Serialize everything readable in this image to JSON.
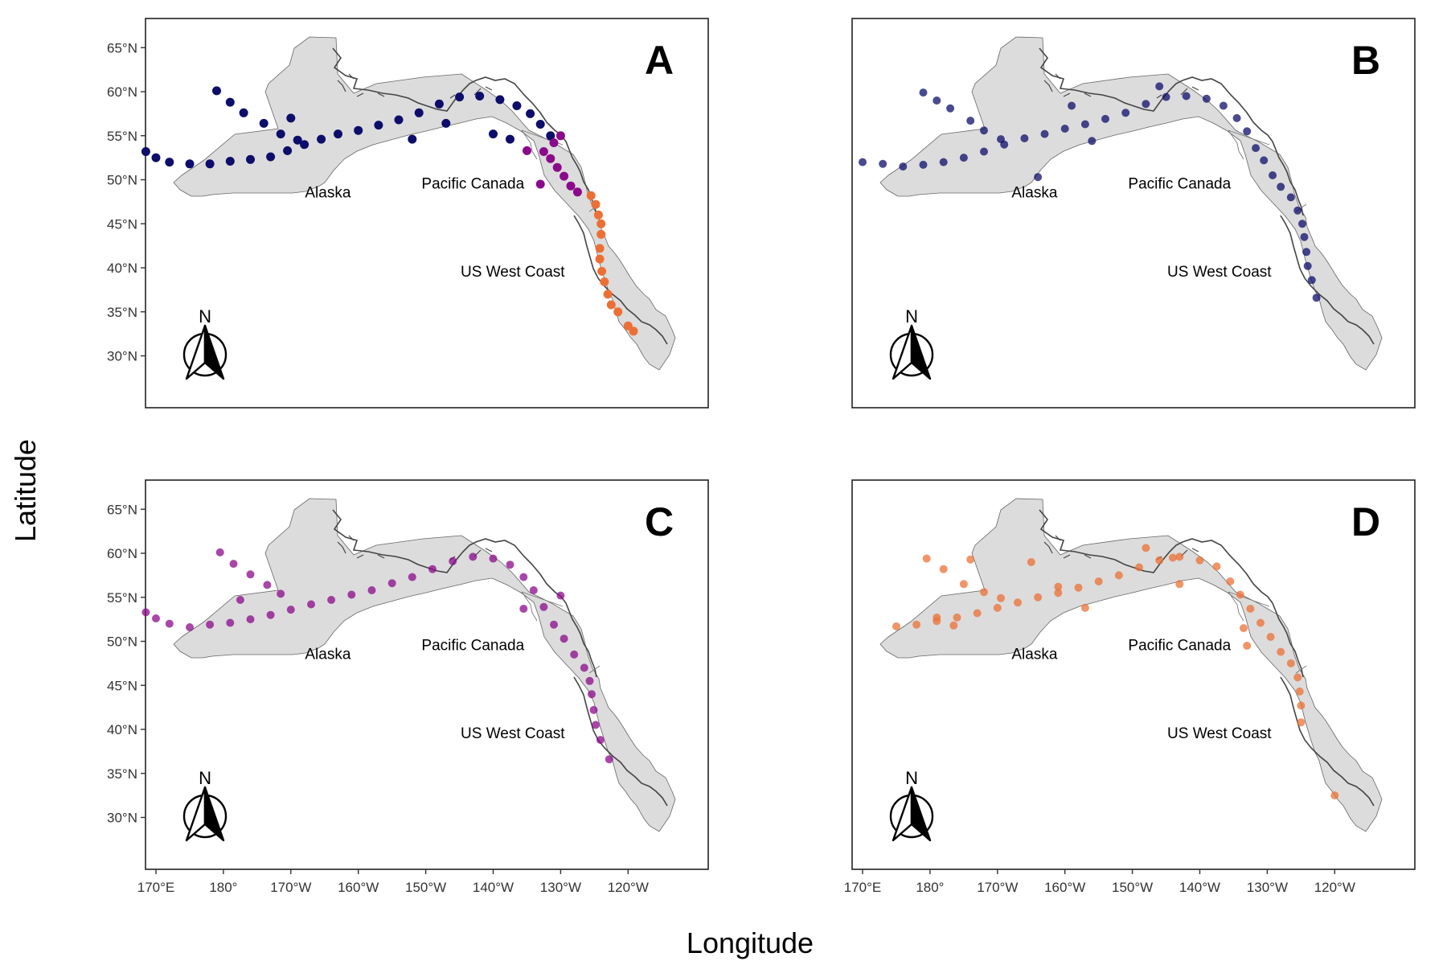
{
  "figure": {
    "x_axis_title": "Longitude",
    "y_axis_title": "Latitude",
    "north_arrow_label": "N"
  },
  "axes": {
    "x_ticks": [
      {
        "lon": 170,
        "label": "170°E"
      },
      {
        "lon": 180,
        "label": "180°"
      },
      {
        "lon": 190,
        "label": "170°W"
      },
      {
        "lon": 200,
        "label": "160°W"
      },
      {
        "lon": 210,
        "label": "150°W"
      },
      {
        "lon": 220,
        "label": "140°W"
      },
      {
        "lon": 230,
        "label": "130°W"
      },
      {
        "lon": 240,
        "label": "120°W"
      }
    ],
    "y_ticks": [
      {
        "lat": 65,
        "label": "65°N"
      },
      {
        "lat": 60,
        "label": "60°N"
      },
      {
        "lat": 55,
        "label": "55°N"
      },
      {
        "lat": 50,
        "label": "50°N"
      },
      {
        "lat": 45,
        "label": "45°N"
      },
      {
        "lat": 40,
        "label": "40°N"
      },
      {
        "lat": 35,
        "label": "35°N"
      },
      {
        "lat": 30,
        "label": "30°N"
      }
    ],
    "xlim": [
      164,
      247
    ],
    "ylim": [
      29,
      67
    ]
  },
  "regions": [
    {
      "name": "Alaska",
      "lon": 195.5,
      "lat": 48
    },
    {
      "name": "Pacific Canada",
      "lon": 217,
      "lat": 49
    },
    {
      "name": "US West Coast",
      "lon": 222.9,
      "lat": 39
    }
  ],
  "colors": {
    "land_fill": "#dcdcdc",
    "coast": "#444444",
    "region_alaska": "#0d0d6b",
    "region_canada": "#8b0a8b",
    "region_uswc": "#ec7035"
  },
  "panels": [
    {
      "label": "A"
    },
    {
      "label": "B"
    },
    {
      "label": "C"
    },
    {
      "label": "D"
    }
  ],
  "chart_data": {
    "type": "scatter",
    "x": "longitude (°E, 0–360)",
    "y": "latitude (°N)",
    "panels": [
      {
        "label": "A",
        "series": [
          {
            "color": "#0d0d6b",
            "points": [
              [
                168.5,
                53.2
              ],
              [
                170,
                52.5
              ],
              [
                172,
                52
              ],
              [
                175,
                51.8
              ],
              [
                178,
                51.8
              ],
              [
                181,
                52.1
              ],
              [
                184,
                52.3
              ],
              [
                187,
                52.6
              ],
              [
                189.5,
                53.3
              ],
              [
                192,
                54
              ],
              [
                194.5,
                54.6
              ],
              [
                197,
                55.2
              ],
              [
                200,
                55.6
              ],
              [
                203,
                56.2
              ],
              [
                206,
                56.8
              ],
              [
                209,
                57.6
              ],
              [
                212,
                58.6
              ],
              [
                215,
                59.4
              ],
              [
                218,
                59.5
              ],
              [
                221,
                59.1
              ],
              [
                223.5,
                58.4
              ],
              [
                225.5,
                57.5
              ],
              [
                227,
                56.3
              ],
              [
                228.5,
                55
              ],
              [
                179,
                60.1
              ],
              [
                181,
                58.8
              ],
              [
                183,
                57.6
              ],
              [
                186,
                56.4
              ],
              [
                188.5,
                55.2
              ],
              [
                191,
                54.5
              ],
              [
                190,
                57
              ],
              [
                208,
                54.6
              ],
              [
                213,
                56.4
              ],
              [
                220,
                55.2
              ],
              [
                222.5,
                54.6
              ]
            ]
          },
          {
            "color": "#8b0a8b",
            "points": [
              [
                227.5,
                53.2
              ],
              [
                228.5,
                52.4
              ],
              [
                229.5,
                51.4
              ],
              [
                230.5,
                50.4
              ],
              [
                231.5,
                49.3
              ],
              [
                232.5,
                48.6
              ],
              [
                229,
                54.2
              ],
              [
                230,
                55
              ],
              [
                225,
                53.3
              ],
              [
                227,
                49.5
              ]
            ]
          },
          {
            "color": "#ec7035",
            "points": [
              [
                234.5,
                48.2
              ],
              [
                235.2,
                47.2
              ],
              [
                235.6,
                46
              ],
              [
                236,
                45
              ],
              [
                236,
                43.8
              ],
              [
                235.8,
                42.2
              ],
              [
                235.8,
                41
              ],
              [
                236.1,
                39.6
              ],
              [
                236.5,
                38.4
              ],
              [
                237,
                37
              ],
              [
                237.5,
                35.8
              ],
              [
                238.5,
                35
              ],
              [
                240,
                33.4
              ],
              [
                240.8,
                32.8
              ]
            ]
          }
        ]
      },
      {
        "label": "B",
        "series": [
          {
            "color": "#0d0d6b",
            "points": [
              [
                170,
                52
              ],
              [
                173,
                51.8
              ],
              [
                176,
                51.5
              ],
              [
                179,
                51.7
              ],
              [
                182,
                52
              ],
              [
                185,
                52.5
              ],
              [
                188,
                53.2
              ],
              [
                191,
                54
              ],
              [
                194,
                54.7
              ],
              [
                197,
                55.2
              ],
              [
                200,
                55.8
              ],
              [
                203,
                56.3
              ],
              [
                206,
                56.9
              ],
              [
                209,
                57.6
              ],
              [
                212,
                58.6
              ],
              [
                215,
                59.4
              ],
              [
                218,
                59.5
              ],
              [
                221,
                59.2
              ],
              [
                223.5,
                58.4
              ],
              [
                225.5,
                57
              ],
              [
                227,
                55.5
              ],
              [
                228.3,
                53.6
              ],
              [
                229.5,
                52.2
              ],
              [
                230.8,
                50.5
              ],
              [
                232,
                49.2
              ],
              [
                233.5,
                48
              ],
              [
                234.5,
                46.5
              ],
              [
                235.2,
                45
              ],
              [
                235.5,
                43.5
              ],
              [
                235.8,
                41.8
              ],
              [
                236,
                40.2
              ],
              [
                236.6,
                38.6
              ],
              [
                237.3,
                36.6
              ],
              [
                179,
                59.9
              ],
              [
                181,
                59
              ],
              [
                183,
                58.1
              ],
              [
                186,
                56.7
              ],
              [
                188,
                55.6
              ],
              [
                190.5,
                54.6
              ],
              [
                196,
                50.3
              ],
              [
                201,
                58.4
              ],
              [
                204,
                54.4
              ],
              [
                214,
                60.6
              ]
            ]
          }
        ]
      },
      {
        "label": "C",
        "series": [
          {
            "color": "#8b0a8b",
            "points": [
              [
                168.5,
                53.3
              ],
              [
                170,
                52.6
              ],
              [
                172,
                52
              ],
              [
                175,
                51.6
              ],
              [
                178,
                51.9
              ],
              [
                181,
                52.1
              ],
              [
                184,
                52.5
              ],
              [
                187,
                53
              ],
              [
                190,
                53.6
              ],
              [
                193,
                54.2
              ],
              [
                196,
                54.7
              ],
              [
                199,
                55.3
              ],
              [
                202,
                55.8
              ],
              [
                205,
                56.6
              ],
              [
                208,
                57.3
              ],
              [
                211,
                58.2
              ],
              [
                214,
                59.1
              ],
              [
                217,
                59.6
              ],
              [
                220,
                59.4
              ],
              [
                222.5,
                58.7
              ],
              [
                224.5,
                57.3
              ],
              [
                226,
                55.8
              ],
              [
                227.5,
                53.9
              ],
              [
                229,
                51.9
              ],
              [
                230.5,
                50.3
              ],
              [
                232,
                48.5
              ],
              [
                233.5,
                47
              ],
              [
                234.3,
                45.5
              ],
              [
                234.6,
                44
              ],
              [
                234.9,
                42.2
              ],
              [
                235.2,
                40.5
              ],
              [
                235.9,
                38.8
              ],
              [
                237.2,
                36.6
              ],
              [
                179.5,
                60.1
              ],
              [
                181.5,
                58.8
              ],
              [
                184,
                57.6
              ],
              [
                186.5,
                56.4
              ],
              [
                188.5,
                55.4
              ],
              [
                182.5,
                54.7
              ],
              [
                224.5,
                53.7
              ],
              [
                230,
                55.2
              ]
            ]
          }
        ]
      },
      {
        "label": "D",
        "series": [
          {
            "color": "#ec7035",
            "points": [
              [
                175,
                51.7
              ],
              [
                178,
                51.9
              ],
              [
                181,
                52.3
              ],
              [
                184,
                52.7
              ],
              [
                187,
                53.2
              ],
              [
                190,
                53.8
              ],
              [
                193,
                54.4
              ],
              [
                196,
                55
              ],
              [
                199,
                55.5
              ],
              [
                202,
                56.1
              ],
              [
                205,
                56.8
              ],
              [
                208,
                57.5
              ],
              [
                211,
                58.4
              ],
              [
                214,
                59.2
              ],
              [
                217,
                59.6
              ],
              [
                220,
                59.2
              ],
              [
                222.5,
                58.5
              ],
              [
                224.5,
                56.8
              ],
              [
                226,
                55.3
              ],
              [
                227.5,
                53.7
              ],
              [
                229,
                52.1
              ],
              [
                230.5,
                50.5
              ],
              [
                232,
                48.8
              ],
              [
                233.5,
                47.5
              ],
              [
                234.5,
                45.9
              ],
              [
                234.8,
                44.3
              ],
              [
                235,
                42.7
              ],
              [
                235,
                40.8
              ],
              [
                179.5,
                59.4
              ],
              [
                182,
                58.2
              ],
              [
                185,
                56.5
              ],
              [
                188,
                55.6
              ],
              [
                190.5,
                54.9
              ],
              [
                181,
                52.7
              ],
              [
                183.5,
                51.8
              ],
              [
                186,
                59.3
              ],
              [
                195,
                59
              ],
              [
                199,
                56.2
              ],
              [
                203,
                53.8
              ],
              [
                212,
                60.6
              ],
              [
                216,
                59.5
              ],
              [
                217,
                56.5
              ],
              [
                226.5,
                51.5
              ],
              [
                227,
                49.5
              ],
              [
                240,
                32.5
              ]
            ]
          }
        ]
      }
    ]
  }
}
